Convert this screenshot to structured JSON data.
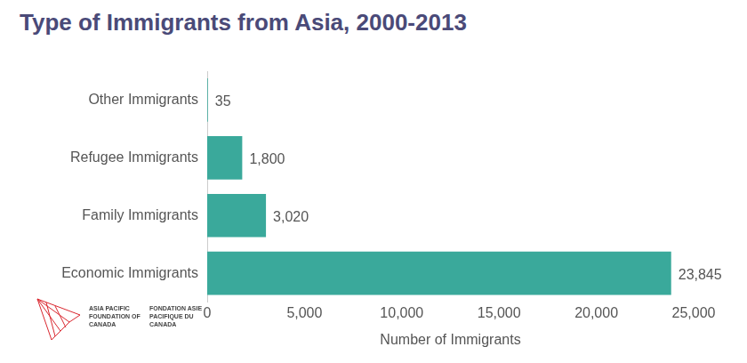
{
  "chart_data": {
    "type": "bar",
    "title": "Type of Immigrants from Asia, 2000-2013",
    "x_label": "Number of Immigrants",
    "annotations": [
      "ASIA PACIFIC FOUNDATION OF CANADA",
      "FONDATION ASIE PACIFIQUE DU CANADA"
    ],
    "categories": [
      "Other Immigrants",
      "Refugee Immigrants",
      "Family Immigrants",
      "Economic Immigrants"
    ],
    "values": [
      35,
      1800,
      3020,
      23845
    ],
    "value_labels": [
      "35",
      "1,800",
      "3,020",
      "23,845"
    ],
    "color": "#3aa99b",
    "orientation": "horizontal",
    "data_labels": true,
    "grid": false,
    "xlim": [
      0,
      25000
    ],
    "xticks": [
      0,
      {
        "value": 5000,
        "label": "5,000"
      },
      {
        "value": 10000,
        "label": "10,000"
      },
      {
        "value": 15000,
        "label": "15,000"
      },
      {
        "value": 20000,
        "label": "20,000"
      },
      {
        "value": 25000,
        "label": "25,000"
      }
    ]
  }
}
